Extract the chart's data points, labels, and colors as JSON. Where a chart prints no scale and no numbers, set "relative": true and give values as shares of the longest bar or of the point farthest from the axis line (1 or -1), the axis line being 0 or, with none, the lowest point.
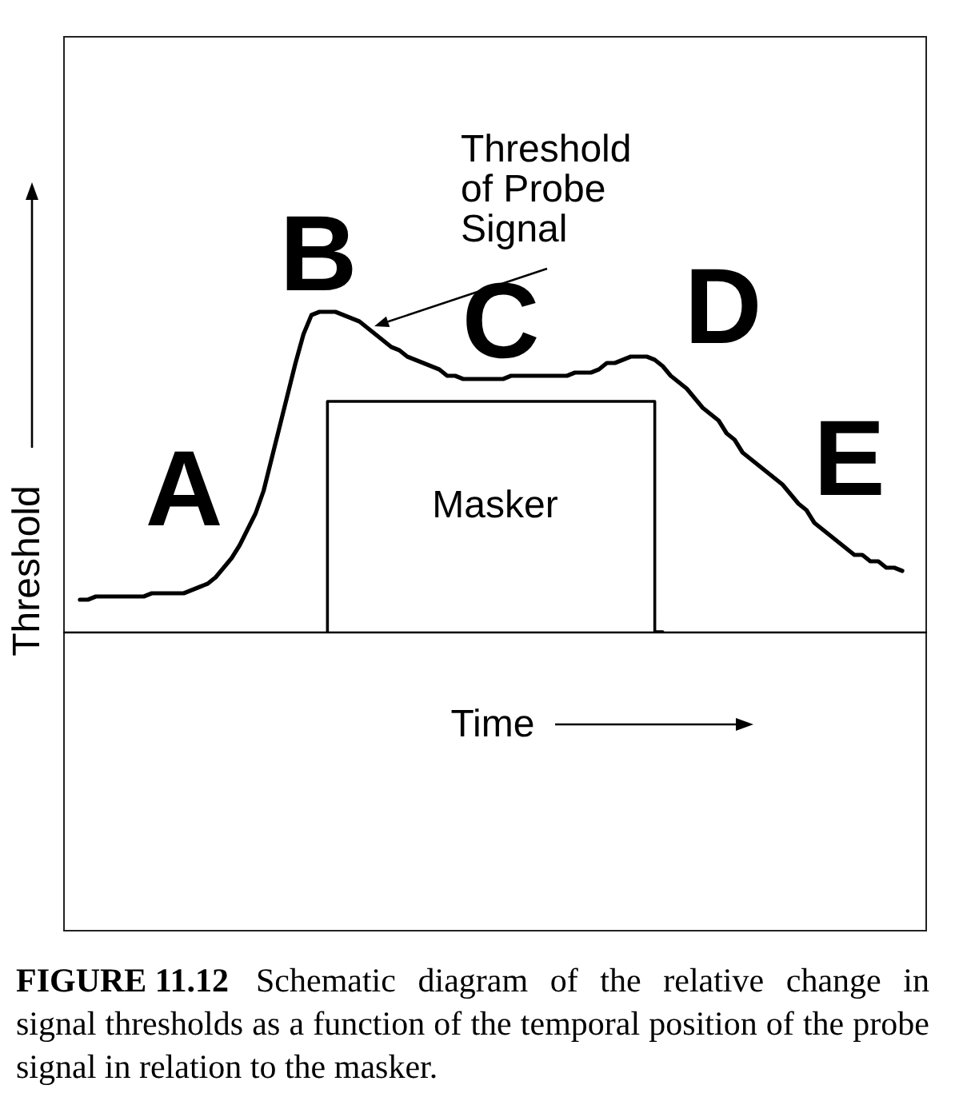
{
  "chart_data": {
    "type": "line",
    "title": "FIGURE 11.12",
    "xlabel": "Time",
    "ylabel": "Threshold",
    "annotations": [
      "A",
      "B",
      "C",
      "D",
      "E",
      "Threshold\nof Probe\nSignal",
      "Schematic diagram of the relative change in",
      "signal thresholds as a function of the temporal position of the probe",
      "signal in relation to the masker."
    ],
    "relative": true,
    "categories": [
      null,
      null,
      null,
      null,
      null,
      null,
      null,
      null,
      null,
      null,
      null,
      null,
      null,
      null,
      null,
      null,
      null,
      null,
      null,
      null,
      null,
      null,
      null,
      null,
      null,
      null,
      null,
      null,
      null,
      null,
      null,
      null,
      null,
      null,
      null,
      null,
      null,
      null,
      null,
      null,
      null,
      null,
      null,
      null,
      null,
      null,
      null,
      null,
      null,
      null,
      null,
      null,
      null,
      null,
      null,
      null,
      null,
      null,
      null,
      null,
      null,
      null,
      null,
      null,
      null,
      null,
      null,
      null,
      null,
      null,
      null,
      null,
      null,
      null,
      null,
      null,
      null,
      null,
      null,
      null,
      null,
      null,
      null,
      null,
      null,
      null,
      null,
      null,
      null,
      null,
      null,
      null,
      null,
      null,
      null,
      null,
      null,
      null,
      null,
      null,
      null,
      null,
      null,
      null,
      null,
      null,
      null,
      null,
      null
    ],
    "series": [
      {
        "color": "#000000",
        "values": [
          null,
          null,
          0.1,
          0.1,
          0.11,
          0.11,
          0.11,
          0.11,
          0.11,
          0.11,
          0.11,
          0.12,
          0.12,
          0.12,
          0.12,
          0.12,
          0.13,
          0.14,
          0.15,
          0.17,
          0.2,
          0.23,
          0.27,
          0.32,
          0.37,
          0.44,
          0.54,
          0.64,
          0.74,
          0.84,
          0.93,
          0.99,
          1,
          1,
          1,
          0.99,
          0.98,
          0.97,
          0.95,
          0.93,
          0.91,
          0.89,
          0.88,
          0.86,
          0.85,
          0.84,
          0.83,
          0.82,
          0.8,
          0.8,
          0.79,
          0.79,
          0.79,
          0.79,
          0.79,
          0.79,
          0.8,
          0.8,
          0.8,
          0.8,
          0.8,
          0.8,
          0.8,
          0.8,
          0.81,
          0.81,
          0.81,
          0.82,
          0.84,
          0.84,
          0.85,
          0.86,
          0.86,
          0.86,
          0.85,
          0.83,
          0.8,
          0.78,
          0.76,
          0.73,
          0.7,
          0.68,
          0.66,
          0.62,
          0.6,
          0.56,
          0.54,
          0.52,
          0.5,
          0.48,
          0.46,
          0.43,
          0.4,
          0.38,
          0.34,
          0.32,
          0.3,
          0.28,
          0.26,
          0.24,
          0.24,
          0.22,
          0.22,
          0.2,
          0.2,
          0.19,
          null,
          null,
          null
        ]
      },
      {
        "name": "Masker",
        "type": "step",
        "color": "#000000",
        "values": [
          null,
          null,
          null,
          null,
          null,
          null,
          null,
          null,
          null,
          null,
          null,
          null,
          null,
          null,
          null,
          null,
          null,
          null,
          null,
          null,
          null,
          null,
          null,
          null,
          null,
          null,
          null,
          null,
          null,
          null,
          null,
          null,
          null,
          0,
          0.72,
          0.72,
          0.72,
          0.72,
          0.72,
          0.72,
          0.72,
          0.72,
          0.72,
          0.72,
          0.72,
          0.72,
          0.72,
          0.72,
          0.72,
          0.72,
          0.72,
          0.72,
          0.72,
          0.72,
          0.72,
          0.72,
          0.72,
          0.72,
          0.72,
          0.72,
          0.72,
          0.72,
          0.72,
          0.72,
          0.72,
          0.72,
          0.72,
          0.72,
          0.72,
          0.72,
          0.72,
          0.72,
          0.72,
          0.72,
          0.72,
          0,
          null,
          null,
          null,
          null,
          null,
          null,
          null,
          null,
          null,
          null,
          null,
          null,
          null,
          null,
          null,
          null,
          null,
          null,
          null,
          null,
          null,
          null,
          null,
          null,
          null,
          null,
          null,
          null,
          null,
          null,
          null,
          null,
          null
        ]
      }
    ]
  }
}
